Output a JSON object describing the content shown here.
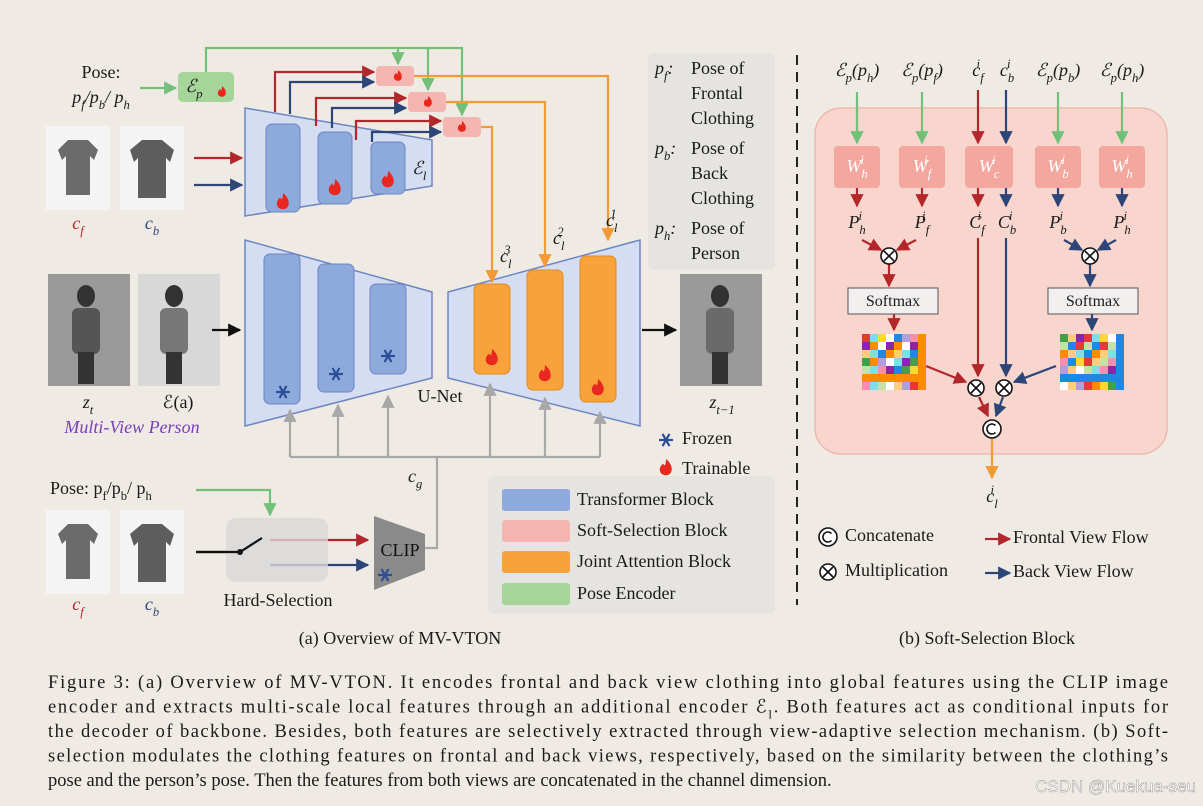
{
  "overview": {
    "pose_label": "Pose:",
    "pose_vars": "p_{f}/p_{b}/ p_{h}",
    "pose_encoder": "ℰ_{p}",
    "local_encoder": "ℰ_{l}",
    "clothing_front": "c_{f}",
    "clothing_back": "c_{b}",
    "feature_labels": [
      "c_{l}^{3}",
      "c_{l}^{2}",
      "c_{l}^{1}"
    ],
    "person_noisy": "z_{t}",
    "person_agnostic": "ℰ(a)",
    "multi_view_person": "Multi-View Person",
    "unet": "U-Net",
    "output": "z_{t−1}",
    "pose_definitions": [
      {
        "symbol": "p_{f}:",
        "text": [
          "Pose of",
          "Frontal",
          "Clothing"
        ]
      },
      {
        "symbol": "p_{b}:",
        "text": [
          "Pose of",
          "Back",
          "Clothing"
        ]
      },
      {
        "symbol": "p_{h}:",
        "text": [
          "Pose of",
          "Person"
        ]
      }
    ],
    "frozen": "Frozen",
    "trainable": "Trainable",
    "legend": [
      "Transformer Block",
      "Soft-Selection Block",
      "Joint Attention Block",
      "Pose Encoder"
    ],
    "global_feature": "c_{g}",
    "pose_label_2": "Pose: p_{f}/p_{b}/ p_{h}",
    "clip": "CLIP",
    "hard_selection": "Hard-Selection",
    "caption": "(a) Overview of MV-VTON"
  },
  "soft_selection": {
    "inputs": [
      "ℰ_{p}(p_{h})",
      "ℰ_{p}(p_{f})",
      "c_{f}^{i}",
      "c_{b}^{i}",
      "ℰ_{p}(p_{b})",
      "ℰ_{p}(p_{h})"
    ],
    "weights": [
      "W_{h}^{i}",
      "W_{f}^{i}",
      "W_{c}^{i}",
      "W_{b}^{i}",
      "W_{h}^{i}"
    ],
    "projections": [
      "P_{h}^{i}",
      "P_{f}^{i}",
      "C_{f}^{i}",
      "C_{b}^{i}",
      "P_{b}^{i}",
      "P_{h}^{i}"
    ],
    "softmax": [
      "Softmax",
      "Softmax"
    ],
    "output": "c_{l}^{i}",
    "legend": {
      "concatenate": "Concatenate",
      "multiplication": "Multiplication",
      "frontal": "Frontal View Flow",
      "back": "Back View Flow"
    },
    "caption": "(b) Soft-Selection Block"
  },
  "figure_caption": [
    "Figure 3: (a) Overview of MV-VTON. It encodes frontal and back view clothing into global features using the CLIP image",
    "encoder and extracts multi-scale local features through an additional encoder ℰ_{l}. Both features act as conditional inputs for",
    "the decoder of backbone. Besides, both features are selectively extracted through view-adaptive selection mechanism. (b) Soft-",
    "selection modulates the clothing features on frontal and back views, respectively, based on the similarity between the clothing’s",
    "pose and the person’s pose. Then the features from both views are concatenated in the channel dimension."
  ],
  "watermark": "CSDN @Kuekua-seu"
}
